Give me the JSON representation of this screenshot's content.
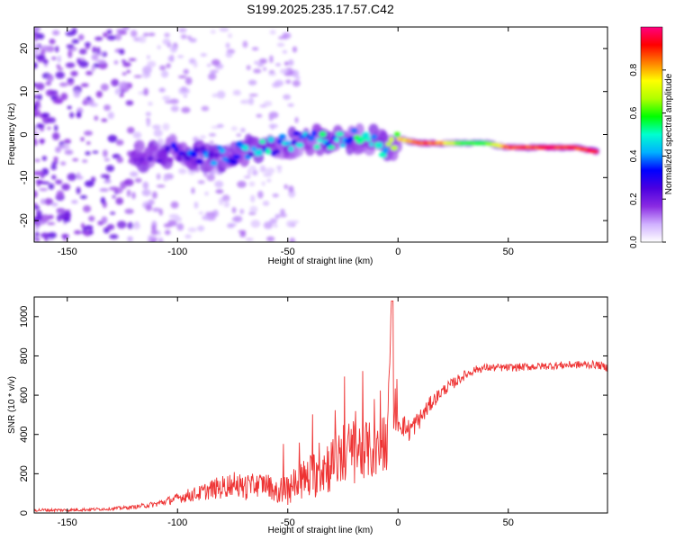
{
  "figure_title": "S199.2025.235.17.57.C42",
  "chart_data": [
    {
      "type": "heatmap",
      "title": "S199.2025.235.17.57.C42",
      "xlabel": "Height of straight line (km)",
      "ylabel": "Frequency (Hz)",
      "xlim": [
        -165,
        95
      ],
      "ylim": [
        -25,
        25
      ],
      "xticks": [
        -150,
        -100,
        -50,
        0,
        50
      ],
      "yticks": [
        -20,
        -10,
        0,
        10,
        20
      ],
      "colorbar": {
        "label": "Normalized spectral amplitude",
        "range": [
          0,
          1
        ],
        "ticks": [
          "0.0",
          "0.2",
          "0.4",
          "0.6",
          "0.8"
        ],
        "colors": [
          "#ffffff",
          "#d0b0ff",
          "#8a2be2",
          "#4b00e0",
          "#0000ff",
          "#00b0ff",
          "#00ffd0",
          "#00ff00",
          "#b0ff00",
          "#ffff00",
          "#ff8000",
          "#ff0000",
          "#ff0080"
        ]
      },
      "ridge": {
        "x": [
          -120,
          -110,
          -100,
          -90,
          -80,
          -70,
          -60,
          -50,
          -40,
          -30,
          -20,
          -15,
          -10,
          -5,
          0,
          10,
          20,
          30,
          40,
          50,
          60,
          70,
          80,
          90
        ],
        "freq": [
          -5,
          -5,
          -4,
          -5,
          -5,
          -4,
          -3,
          -2,
          -1,
          -2,
          -1,
          -1,
          -1,
          -4,
          -1,
          -2,
          -2,
          -2,
          -2,
          -3,
          -3,
          -3,
          -3,
          -4
        ],
        "amplitude": [
          0.15,
          0.2,
          0.3,
          0.35,
          0.35,
          0.4,
          0.45,
          0.4,
          0.45,
          0.45,
          0.5,
          0.5,
          0.45,
          0.55,
          0.75,
          0.9,
          0.85,
          0.6,
          0.6,
          0.9,
          0.9,
          0.95,
          0.9,
          0.95
        ]
      }
    },
    {
      "type": "line",
      "xlabel": "Height of straight line (km)",
      "ylabel": "SNR (10 * v/v)",
      "xlim": [
        -165,
        95
      ],
      "ylim": [
        0,
        1100
      ],
      "xticks": [
        -150,
        -100,
        -50,
        0,
        50
      ],
      "yticks": [
        0,
        200,
        400,
        600,
        800,
        1000
      ],
      "series": [
        {
          "name": "SNR",
          "color": "#ee3333",
          "x": [
            -165,
            -150,
            -140,
            -130,
            -120,
            -110,
            -100,
            -95,
            -90,
            -85,
            -80,
            -75,
            -70,
            -65,
            -60,
            -55,
            -50,
            -45,
            -40,
            -35,
            -30,
            -25,
            -20,
            -15,
            -10,
            -5,
            -3,
            -2,
            0,
            5,
            10,
            15,
            20,
            25,
            30,
            35,
            40,
            50,
            60,
            70,
            80,
            90,
            95
          ],
          "y": [
            15,
            15,
            18,
            22,
            30,
            45,
            75,
            90,
            100,
            120,
            130,
            150,
            130,
            140,
            150,
            110,
            120,
            160,
            180,
            230,
            250,
            300,
            310,
            330,
            300,
            350,
            1080,
            500,
            470,
            420,
            480,
            560,
            620,
            660,
            700,
            730,
            740,
            740,
            745,
            750,
            755,
            755,
            740
          ],
          "noise": [
            8,
            8,
            8,
            8,
            10,
            15,
            25,
            35,
            40,
            50,
            60,
            60,
            70,
            60,
            60,
            60,
            80,
            100,
            120,
            140,
            150,
            160,
            170,
            150,
            140,
            130,
            0,
            80,
            60,
            60,
            50,
            40,
            30,
            30,
            25,
            20,
            20,
            20,
            20,
            20,
            20,
            20,
            20
          ]
        }
      ]
    }
  ]
}
